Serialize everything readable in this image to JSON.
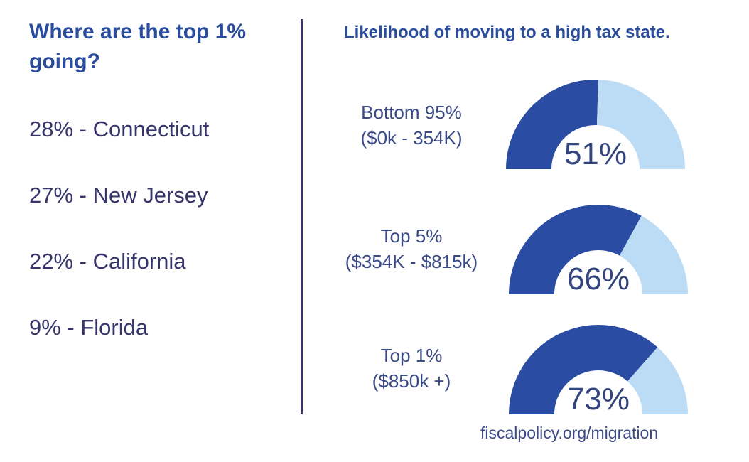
{
  "left_panel": {
    "title": "Where are the top 1% going?",
    "destinations": [
      {
        "text": "28% - Connecticut",
        "state": "Connecticut",
        "percent": 28
      },
      {
        "text": "27% - New Jersey",
        "state": "New Jersey",
        "percent": 27
      },
      {
        "text": "22% - California",
        "state": "California",
        "percent": 22
      },
      {
        "text": "9% - Florida",
        "state": "Florida",
        "percent": 9
      }
    ]
  },
  "right_panel": {
    "title": "Likelihood of moving to a high tax state."
  },
  "colors": {
    "filled": "#2a4ca3",
    "remaining": "#bcdcf6",
    "heading": "#2a4c9c",
    "text": "#38346c"
  },
  "source": "fiscalpolicy.org/migration",
  "chart_data": {
    "type": "gauge",
    "title": "Likelihood of moving to a high tax state.",
    "max": 100,
    "series": [
      {
        "name": "Bottom 95%",
        "range": "($0k - 354K)",
        "value": 51,
        "label": "51%"
      },
      {
        "name": "Top 5%",
        "range": "($354K - $815k)",
        "value": 66,
        "label": "66%"
      },
      {
        "name": "Top 1%",
        "range": "($850k +)",
        "value": 73,
        "label": "73%"
      }
    ]
  }
}
